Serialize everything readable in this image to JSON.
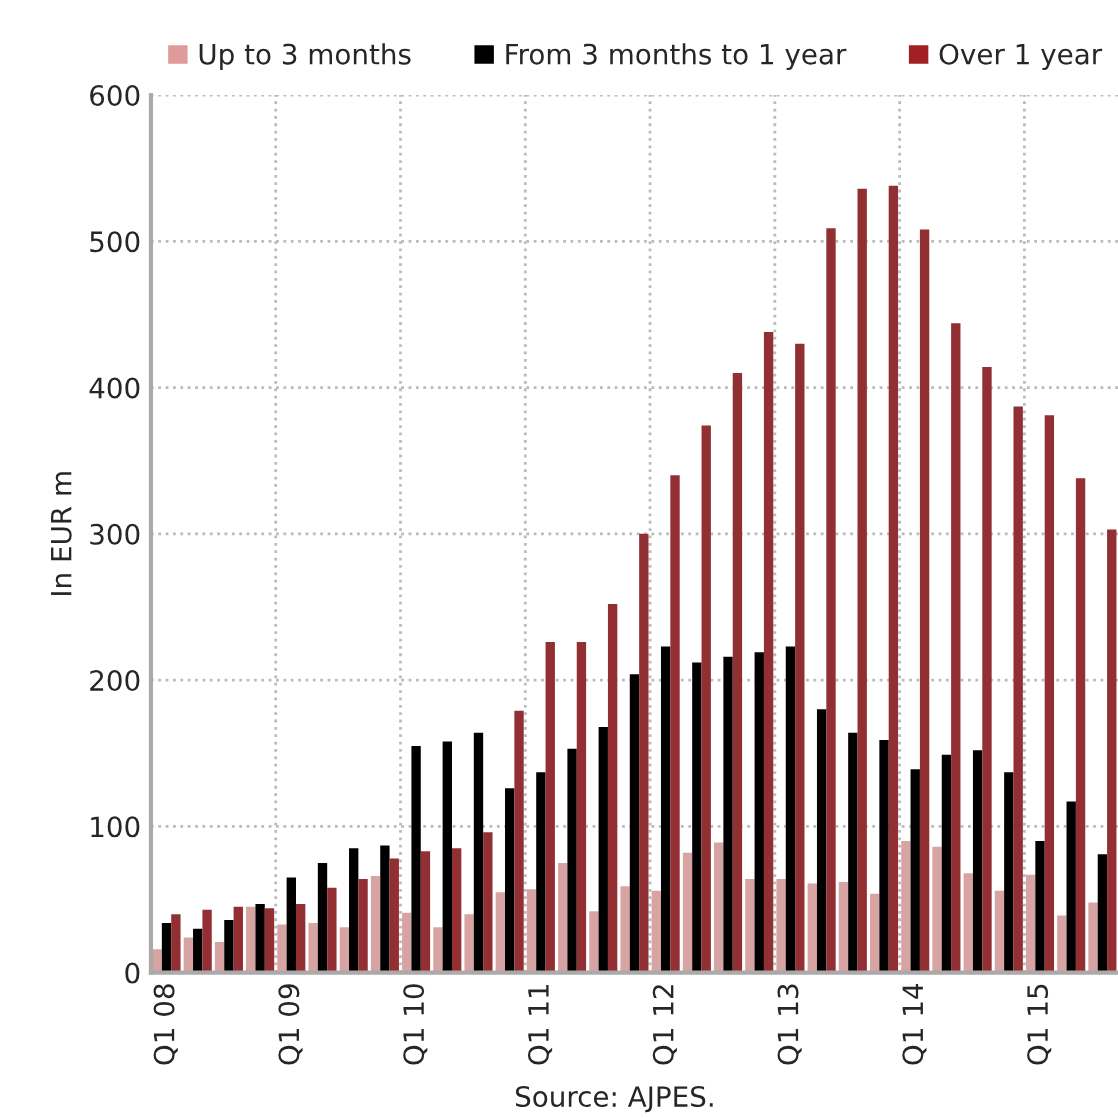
{
  "chart_data": {
    "type": "bar",
    "ylabel": "In EUR m",
    "annotations": [
      "Source: AJPES."
    ],
    "categories": [
      "Q1 08",
      null,
      null,
      null,
      "Q1 09",
      null,
      null,
      null,
      "Q1 10",
      null,
      null,
      null,
      "Q1 11",
      null,
      null,
      null,
      "Q1 12",
      null,
      null,
      null,
      "Q1 13",
      null,
      null,
      null,
      "Q1 14",
      null,
      null,
      null,
      "Q1 15",
      null,
      null
    ],
    "series": [
      {
        "name": "Up to 3 months",
        "color": "#e09a9a",
        "values": [
          16,
          24,
          21,
          45,
          33,
          34,
          31,
          66,
          41,
          31,
          40,
          55,
          57,
          75,
          42,
          59,
          56,
          82,
          89,
          64,
          64,
          61,
          62,
          54,
          90,
          86,
          68,
          56,
          67,
          39,
          48
        ]
      },
      {
        "name": "From 3 months to 1 year",
        "color": "#000000",
        "values": [
          34,
          30,
          36,
          47,
          65,
          75,
          85,
          87,
          155,
          158,
          164,
          126,
          137,
          153,
          168,
          204,
          223,
          212,
          216,
          219,
          223,
          180,
          164,
          159,
          139,
          149,
          152,
          137,
          90,
          117,
          81
        ]
      },
      {
        "name": "Over 1 year",
        "color": "#a21f24",
        "values": [
          40,
          43,
          45,
          44,
          47,
          58,
          64,
          78,
          83,
          85,
          96,
          179,
          226,
          226,
          252,
          300,
          340,
          374,
          410,
          438,
          430,
          509,
          536,
          538,
          508,
          444,
          414,
          387,
          381,
          338,
          303
        ]
      }
    ],
    "ylim": [
      0,
      600
    ],
    "yticks": [
      0,
      100,
      200,
      300,
      400,
      500,
      600
    ],
    "grid": true,
    "legend": "top"
  }
}
